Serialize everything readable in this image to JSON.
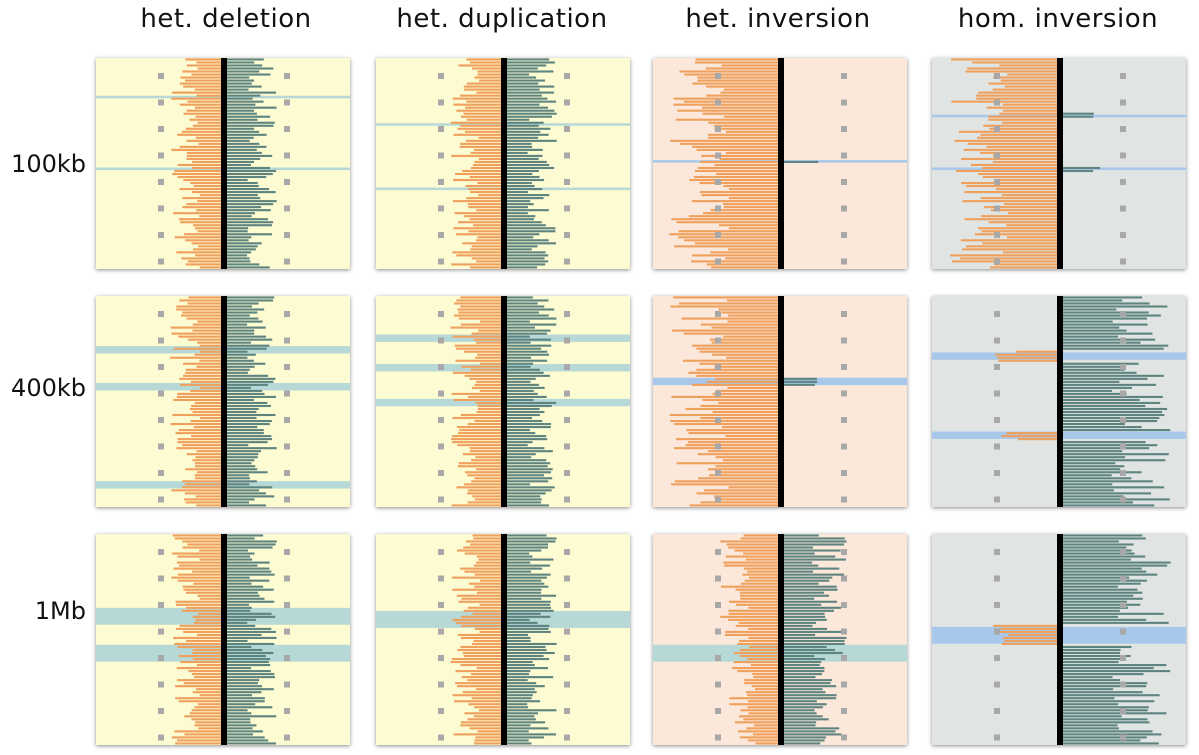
{
  "columns": [
    "het. deletion",
    "het. duplication",
    "het. inversion",
    "hom. inversion"
  ],
  "rows": [
    "100kb",
    "400kb",
    "1Mb"
  ],
  "colors": {
    "background_normal": "#fdfbd2",
    "background_het_inversion": "#fce8da",
    "background_hom_inversion": "#e0e5e3",
    "left_bars": "#efa05c",
    "right_bars": "#5e8480",
    "center_axis": "#000000",
    "marker": "#a8a8a8",
    "band_teal": "#b6d9d7",
    "band_blue": "#a7c8ea"
  },
  "panels": [
    {
      "id": "het-deletion-100kb",
      "variant": "normal",
      "bands": [
        {
          "pos": 0.185,
          "w": 0.012,
          "color": "teal"
        },
        {
          "pos": 0.525,
          "w": 0.012,
          "color": "teal"
        }
      ]
    },
    {
      "id": "het-duplication-100kb",
      "variant": "normal",
      "bands": [
        {
          "pos": 0.315,
          "w": 0.012,
          "color": "teal"
        },
        {
          "pos": 0.62,
          "w": 0.012,
          "color": "teal"
        }
      ]
    },
    {
      "id": "het-inversion-100kb",
      "variant": "het-inv",
      "bands": [
        {
          "pos": 0.49,
          "w": 0.012,
          "color": "blue"
        }
      ]
    },
    {
      "id": "hom-inversion-100kb",
      "variant": "hom-inv-100",
      "bands": [
        {
          "pos": 0.275,
          "w": 0.012,
          "color": "blue"
        },
        {
          "pos": 0.525,
          "w": 0.012,
          "color": "blue"
        }
      ]
    },
    {
      "id": "het-deletion-400kb",
      "variant": "normal",
      "bands": [
        {
          "pos": 0.255,
          "w": 0.035,
          "color": "teal"
        },
        {
          "pos": 0.43,
          "w": 0.035,
          "color": "teal"
        },
        {
          "pos": 0.895,
          "w": 0.035,
          "color": "teal"
        }
      ]
    },
    {
      "id": "het-duplication-400kb",
      "variant": "normal",
      "bands": [
        {
          "pos": 0.2,
          "w": 0.035,
          "color": "teal"
        },
        {
          "pos": 0.34,
          "w": 0.035,
          "color": "teal"
        },
        {
          "pos": 0.505,
          "w": 0.035,
          "color": "teal"
        }
      ]
    },
    {
      "id": "het-inversion-400kb",
      "variant": "het-inv",
      "bands": [
        {
          "pos": 0.405,
          "w": 0.035,
          "color": "blue"
        }
      ]
    },
    {
      "id": "hom-inversion-400kb",
      "variant": "hom-inv",
      "bands": [
        {
          "pos": 0.285,
          "w": 0.035,
          "color": "blue"
        },
        {
          "pos": 0.66,
          "w": 0.035,
          "color": "blue"
        }
      ]
    },
    {
      "id": "het-deletion-1Mb",
      "variant": "normal",
      "bands": [
        {
          "pos": 0.39,
          "w": 0.08,
          "color": "teal"
        },
        {
          "pos": 0.565,
          "w": 0.08,
          "color": "teal"
        }
      ]
    },
    {
      "id": "het-duplication-1Mb",
      "variant": "normal",
      "bands": [
        {
          "pos": 0.405,
          "w": 0.08,
          "color": "teal"
        }
      ]
    },
    {
      "id": "het-inversion-1Mb",
      "variant": "het-inv-1mb",
      "bands": [
        {
          "pos": 0.565,
          "w": 0.08,
          "color": "teal"
        }
      ]
    },
    {
      "id": "hom-inversion-1Mb",
      "variant": "hom-inv",
      "bands": [
        {
          "pos": 0.48,
          "w": 0.08,
          "color": "blue"
        }
      ]
    }
  ]
}
